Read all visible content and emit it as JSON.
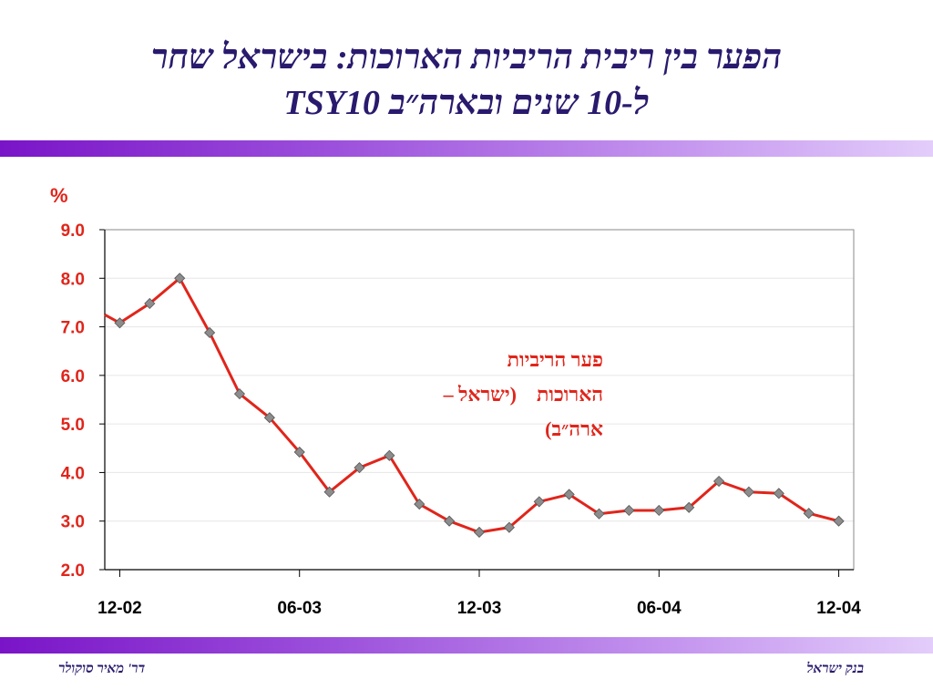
{
  "slide": {
    "title_line1": "הפער בין ריבית הריביות הארוכות: בישראל שחר",
    "title_line2": "ל-10 שנים ובארה״ב  TSY10"
  },
  "footer": {
    "left": "דר' מאיר סוקולר",
    "right": "בנק ישראל"
  },
  "chart_data": {
    "type": "line",
    "ylabel": "%",
    "ylim": [
      2.0,
      9.0
    ],
    "yticks": [
      "2.0",
      "3.0",
      "4.0",
      "5.0",
      "6.0",
      "7.0",
      "8.0",
      "9.0"
    ],
    "xticks": [
      "12-02",
      "06-03",
      "12-03",
      "06-04",
      "12-04"
    ],
    "xlim": [
      -0.5,
      24.5
    ],
    "xtick_positions": [
      0,
      6,
      12,
      18,
      24
    ],
    "annotation_lines": [
      "פער הריביות",
      "הארוכות    (ישראל –",
      "ארה״ב)"
    ],
    "series": [
      {
        "name": "",
        "color": "#e0251b",
        "marker_color": "#8c8c8c",
        "x": [
          -0.5,
          0,
          1,
          2,
          3,
          4,
          5,
          6,
          7,
          8,
          9,
          10,
          11,
          12,
          13,
          14,
          15,
          16,
          17,
          18,
          19,
          20,
          21,
          22,
          23,
          24
        ],
        "values": [
          7.25,
          7.08,
          7.48,
          8.0,
          6.88,
          5.62,
          5.13,
          4.42,
          3.6,
          4.1,
          4.35,
          3.35,
          3.0,
          2.77,
          2.87,
          3.4,
          3.55,
          3.15,
          3.22,
          3.22,
          3.28,
          3.82,
          3.6,
          3.57,
          3.16,
          3.0
        ],
        "markers_from_index": 1
      }
    ]
  }
}
